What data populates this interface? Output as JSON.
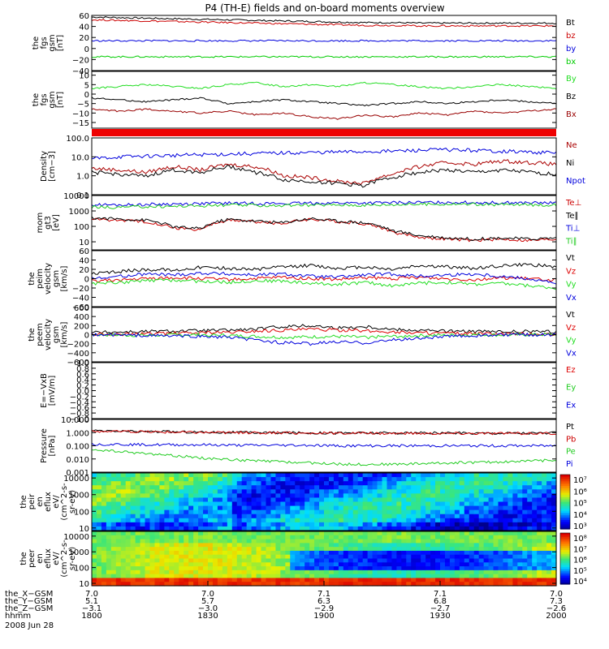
{
  "title": "P4 (TH-E) fields and on-board moments overview",
  "chart_data": [
    {
      "type": "line",
      "ylabel": [
        "the",
        "fgs",
        "gsm",
        "[nT]"
      ],
      "ylim": [
        -40,
        60
      ],
      "yticks": [
        -40,
        -20,
        0,
        20,
        40,
        60
      ],
      "ytick_labels": [
        "−40",
        "−20",
        "0",
        "20",
        "40",
        "60"
      ],
      "series": [
        {
          "name": "Bt",
          "color": "#000000",
          "values": [
            57,
            56,
            55,
            54,
            53,
            52,
            51,
            50,
            49,
            48,
            47,
            47,
            46,
            46,
            46,
            46,
            46,
            46
          ]
        },
        {
          "name": "bz",
          "color": "#cc0000",
          "values": [
            52,
            51,
            50,
            49,
            48,
            47,
            46,
            45,
            44,
            43,
            42,
            42,
            41,
            41,
            41,
            41,
            41,
            41
          ]
        },
        {
          "name": "by",
          "color": "#0000dd",
          "values": [
            14,
            14,
            14,
            14,
            14,
            14,
            14,
            14,
            14,
            14,
            14,
            14,
            14,
            14,
            14,
            14,
            14,
            14
          ]
        },
        {
          "name": "bx",
          "color": "#00cc00",
          "values": [
            -15,
            -15,
            -15,
            -15,
            -15,
            -15,
            -15,
            -15,
            -15,
            -15,
            -15,
            -15,
            -15,
            -15,
            -15,
            -15,
            -15,
            -15
          ]
        }
      ]
    },
    {
      "type": "line",
      "ylabel": [
        "the",
        "fgs",
        "gsm",
        "[nT]"
      ],
      "ylim": [
        -18,
        12
      ],
      "yticks": [
        -15,
        -10,
        -5,
        0,
        5,
        10
      ],
      "ytick_labels": [
        "−15",
        "−10",
        "−5",
        "0",
        "5",
        "10"
      ],
      "series": [
        {
          "name": "By",
          "color": "#22dd22",
          "values": [
            3,
            4,
            5,
            4,
            3,
            5,
            6,
            4,
            5,
            4,
            6,
            5,
            4,
            3,
            4,
            5,
            4,
            3
          ]
        },
        {
          "name": "Bz",
          "color": "#000000",
          "values": [
            -2,
            -3,
            -4,
            -3,
            -2,
            -5,
            -4,
            -3,
            -4,
            -5,
            -6,
            -5,
            -4,
            -5,
            -4,
            -3,
            -4,
            -5
          ]
        },
        {
          "name": "Bx",
          "color": "#990000",
          "values": [
            -8,
            -9,
            -8,
            -9,
            -10,
            -9,
            -11,
            -10,
            -12,
            -13,
            -11,
            -12,
            -10,
            -11,
            -9,
            -10,
            -9,
            -8
          ]
        }
      ]
    },
    {
      "type": "line",
      "ylabel": [
        "Density",
        "[cm−3]"
      ],
      "yscale": "log",
      "ylim": [
        0.1,
        100
      ],
      "yticks": [
        0.1,
        1,
        10,
        100
      ],
      "ytick_labels": [
        "0.1",
        "1.0",
        "10.0",
        "100.0"
      ],
      "series": [
        {
          "name": "Ne",
          "color": "#aa0000",
          "values": [
            2.5,
            2.0,
            1.5,
            3,
            2,
            4,
            3,
            1,
            0.8,
            0.5,
            0.4,
            1.2,
            3,
            5,
            4,
            6,
            5,
            4
          ]
        },
        {
          "name": "Ni",
          "color": "#000000",
          "values": [
            1.5,
            1.2,
            0.9,
            2,
            1.5,
            3,
            1.5,
            0.6,
            0.5,
            0.4,
            0.3,
            0.8,
            1.5,
            2,
            1.5,
            2,
            1.5,
            1.2
          ]
        },
        {
          "name": "Npot",
          "color": "#0000dd",
          "values": [
            8,
            10,
            11,
            12,
            13,
            14,
            15,
            16,
            17,
            18,
            19,
            20,
            22,
            24,
            22,
            20,
            18,
            16
          ]
        }
      ]
    },
    {
      "type": "line",
      "ylabel": [
        "mom",
        "gt3",
        "[eV]"
      ],
      "yscale": "log",
      "ylim": [
        3,
        10000
      ],
      "yticks": [
        10,
        100,
        1000,
        10000
      ],
      "ytick_labels": [
        "10",
        "100",
        "1000",
        "10000"
      ],
      "series": [
        {
          "name": "Te⊥",
          "color": "#cc0000",
          "values": [
            300,
            250,
            200,
            80,
            60,
            250,
            200,
            150,
            300,
            200,
            150,
            40,
            20,
            15,
            12,
            15,
            12,
            15
          ]
        },
        {
          "name": "Te∥",
          "color": "#000000",
          "values": [
            350,
            300,
            250,
            90,
            70,
            280,
            220,
            170,
            320,
            220,
            170,
            50,
            25,
            18,
            15,
            18,
            15,
            18
          ]
        },
        {
          "name": "Ti⊥",
          "color": "#0000dd",
          "values": [
            2500,
            2400,
            2600,
            2800,
            3000,
            3200,
            3100,
            3000,
            3200,
            3300,
            3200,
            3400,
            3500,
            3600,
            3500,
            3400,
            3300,
            3200
          ]
        },
        {
          "name": "Ti∥",
          "color": "#22cc22",
          "values": [
            1800,
            1700,
            1900,
            2000,
            2200,
            2400,
            2300,
            2200,
            2400,
            2500,
            2400,
            2600,
            2700,
            2800,
            2700,
            2600,
            2500,
            2400
          ]
        }
      ]
    },
    {
      "type": "line",
      "ylabel": [
        "the",
        "peim",
        "velocity",
        "gsm",
        "[km/s]"
      ],
      "ylim": [
        -60,
        60
      ],
      "yticks": [
        -60,
        -40,
        -20,
        0,
        20,
        40,
        60
      ],
      "ytick_labels": [
        "−60",
        "−40",
        "−20",
        "0",
        "20",
        "40",
        "60"
      ],
      "series": [
        {
          "name": "Vt",
          "color": "#000000",
          "values": [
            10,
            15,
            20,
            18,
            25,
            22,
            20,
            25,
            28,
            22,
            25,
            20,
            28,
            25,
            22,
            28,
            30,
            25
          ]
        },
        {
          "name": "Vz",
          "color": "#dd0000",
          "values": [
            -5,
            -3,
            0,
            2,
            0,
            -2,
            0,
            3,
            0,
            -2,
            2,
            0,
            3,
            0,
            -2,
            2,
            0,
            -3
          ]
        },
        {
          "name": "Vy",
          "color": "#22dd22",
          "values": [
            -10,
            -8,
            -5,
            -3,
            -6,
            -8,
            -4,
            -5,
            -10,
            -12,
            -8,
            -15,
            -10,
            -8,
            -12,
            -10,
            -15,
            -20
          ]
        },
        {
          "name": "Vx",
          "color": "#0000dd",
          "values": [
            0,
            5,
            10,
            8,
            12,
            10,
            8,
            10,
            5,
            3,
            8,
            10,
            5,
            8,
            10,
            5,
            0,
            -10
          ]
        }
      ]
    },
    {
      "type": "line",
      "ylabel": [
        "the",
        "peem",
        "velocity",
        "gsm",
        "[km/s]"
      ],
      "ylim": [
        -600,
        600
      ],
      "yticks": [
        -600,
        -400,
        -200,
        0,
        200,
        400,
        600
      ],
      "ytick_labels": [
        "−600",
        "−400",
        "−200",
        "0",
        "200",
        "400",
        "600"
      ],
      "series": [
        {
          "name": "Vt",
          "color": "#000000",
          "values": [
            50,
            60,
            70,
            80,
            90,
            100,
            120,
            180,
            200,
            150,
            180,
            120,
            100,
            80,
            70,
            60,
            70,
            60
          ]
        },
        {
          "name": "Vz",
          "color": "#dd0000",
          "values": [
            0,
            10,
            20,
            30,
            40,
            50,
            80,
            100,
            120,
            100,
            80,
            60,
            40,
            30,
            20,
            10,
            10,
            0
          ]
        },
        {
          "name": "Vy",
          "color": "#22dd22",
          "values": [
            0,
            -10,
            -20,
            -10,
            0,
            -20,
            -40,
            -60,
            -50,
            -40,
            -60,
            -40,
            -20,
            -10,
            0,
            -10,
            0,
            0
          ]
        },
        {
          "name": "Vx",
          "color": "#0000dd",
          "values": [
            0,
            -10,
            -20,
            -30,
            -40,
            -60,
            -120,
            -180,
            -200,
            -160,
            -180,
            -120,
            -80,
            -40,
            -20,
            -10,
            0,
            0
          ]
        }
      ]
    },
    {
      "type": "line",
      "ylabel": [
        "E=−VxB",
        "[mV/m]"
      ],
      "ylim": [
        -1,
        1
      ],
      "yticks": [
        -1,
        -0.8,
        -0.6,
        -0.4,
        -0.2,
        0,
        0.2,
        0.4,
        0.6,
        0.8,
        1
      ],
      "ytick_labels": [
        "−1.0",
        "−0.8",
        "−0.6",
        "−0.4",
        "−0.2",
        "0.0",
        "0.2",
        "0.4",
        "0.6",
        "0.8",
        "1.0"
      ],
      "series": [
        {
          "name": "Ez",
          "color": "#dd0000",
          "values": []
        },
        {
          "name": "Ey",
          "color": "#22cc22",
          "values": []
        },
        {
          "name": "Ex",
          "color": "#0000dd",
          "values": []
        }
      ]
    },
    {
      "type": "line",
      "ylabel": [
        "Pressure",
        "[nPa]"
      ],
      "yscale": "log",
      "ylim": [
        0.001,
        10
      ],
      "yticks": [
        0.001,
        0.01,
        0.1,
        1,
        10
      ],
      "ytick_labels": [
        "0.001",
        "0.010",
        "0.100",
        "1.000",
        "10.000"
      ],
      "series": [
        {
          "name": "Pt",
          "color": "#000000",
          "values": [
            1.3,
            1.25,
            1.2,
            1.15,
            1.1,
            1.05,
            1.0,
            0.98,
            0.96,
            0.95,
            0.94,
            0.93,
            0.92,
            0.92,
            0.92,
            0.92,
            0.92,
            0.92
          ]
        },
        {
          "name": "Pb",
          "color": "#cc0000",
          "values": [
            1.25,
            1.2,
            1.15,
            1.1,
            1.05,
            1.0,
            0.95,
            0.93,
            0.91,
            0.9,
            0.89,
            0.88,
            0.87,
            0.87,
            0.87,
            0.87,
            0.87,
            0.87
          ]
        },
        {
          "name": "Pe",
          "color": "#22cc22",
          "values": [
            0.05,
            0.035,
            0.025,
            0.018,
            0.012,
            0.009,
            0.007,
            0.006,
            0.005,
            0.004,
            0.004,
            0.004,
            0.0045,
            0.005,
            0.0055,
            0.006,
            0.007,
            0.008
          ]
        },
        {
          "name": "Pi",
          "color": "#0000dd",
          "values": [
            0.13,
            0.13,
            0.12,
            0.12,
            0.12,
            0.11,
            0.11,
            0.11,
            0.11,
            0.1,
            0.1,
            0.1,
            0.1,
            0.1,
            0.1,
            0.1,
            0.1,
            0.1
          ]
        }
      ]
    },
    {
      "type": "heatmap",
      "ylabel": [
        "the",
        "peir",
        "en",
        "eflux",
        "eV/",
        "(cm^2-s-",
        "sr-eV)"
      ],
      "yscale": "log",
      "ylim": [
        7,
        20000
      ],
      "yticks": [
        10,
        100,
        1000,
        10000
      ],
      "ytick_labels": [
        "10",
        "100",
        "1000",
        "10000"
      ],
      "colorbar": {
        "min_exp": 3,
        "max_exp": 7,
        "labels": [
          "10³",
          "10⁴",
          "10⁵",
          "10⁶",
          "10⁷"
        ]
      }
    },
    {
      "type": "heatmap",
      "ylabel": [
        "the",
        "peer",
        "en",
        "eflux",
        "eV/",
        "(cm^2-s-",
        "sr-eV)"
      ],
      "yscale": "log",
      "ylim": [
        7,
        20000
      ],
      "yticks": [
        10,
        100,
        1000,
        10000
      ],
      "ytick_labels": [
        "10",
        "100",
        "1000",
        "10000"
      ],
      "colorbar": {
        "min_exp": 4,
        "max_exp": 8,
        "labels": [
          "10⁴",
          "10⁵",
          "10⁶",
          "10⁷",
          "10⁸"
        ]
      }
    }
  ],
  "xaxis": {
    "ticks": [
      {
        "hhmm": "1800",
        "X": "7.0",
        "Y": "5.1",
        "Z": "−3.1"
      },
      {
        "hhmm": "1830",
        "X": "7.0",
        "Y": "5.7",
        "Z": "−3.0"
      },
      {
        "hhmm": "1900",
        "X": "7.1",
        "Y": "6.3",
        "Z": "−2.9"
      },
      {
        "hhmm": "1930",
        "X": "7.1",
        "Y": "6.8",
        "Z": "−2.7"
      },
      {
        "hhmm": "2000",
        "X": "7.0",
        "Y": "7.3",
        "Z": "−2.6"
      }
    ],
    "row_labels": [
      "the_X−GSM",
      "the_Y−GSM",
      "the_Z−GSM",
      "hhmm"
    ],
    "date": "2008 Jun 28"
  }
}
